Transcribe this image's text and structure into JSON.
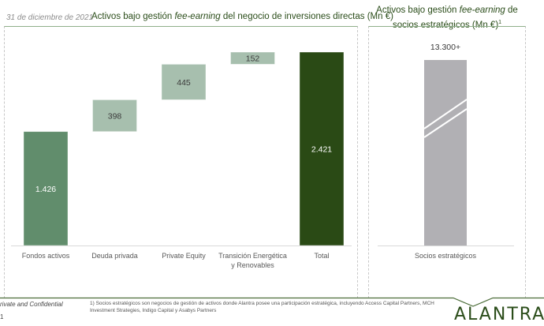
{
  "header": {
    "date": "31 de diciembre de 2021",
    "left_title_pre": "Activos bajo gestión ",
    "left_title_em": "fee-earning",
    "left_title_post": " del negocio de inversiones directas (Mn €)",
    "right_title_pre": "Activos bajo gestión ",
    "right_title_em": "fee-earning",
    "right_title_post": " de socios estratégicos (Mn €)",
    "right_title_sup": "1"
  },
  "chart_data": [
    {
      "type": "bar",
      "subtype": "waterfall",
      "title": "Activos bajo gestión fee-earning del negocio de inversiones directas (Mn €)",
      "categories": [
        "Fondos activos",
        "Deuda privada",
        "Private Equity",
        "Transición Energética y Renovables",
        "Total"
      ],
      "category_lines": [
        [
          "Fondos activos"
        ],
        [
          "Deuda privada"
        ],
        [
          "Private Equity"
        ],
        [
          "Transición Energética",
          "y Renovables"
        ],
        [
          "Total"
        ]
      ],
      "values": [
        1426,
        398,
        445,
        152,
        2421
      ],
      "labels": [
        "1.426",
        "398",
        "445",
        "152",
        "2.421"
      ],
      "bar_kinds": [
        "base",
        "step",
        "step",
        "step",
        "total"
      ],
      "colors": {
        "base": "#618d6c",
        "step": "#a7bfae",
        "total": "#2a4a15"
      },
      "label_colors": {
        "base": "#ffffff",
        "step": "#3a3a3a",
        "total": "#ffffff"
      },
      "xlabel": "",
      "ylabel": "",
      "ylim": [
        0,
        2421
      ],
      "grid": false,
      "legend": "none"
    },
    {
      "type": "bar",
      "title": "Activos bajo gestión fee-earning de socios estratégicos (Mn €)",
      "categories": [
        "Socios estratégicos"
      ],
      "values": [
        13300
      ],
      "labels": [
        "13.300+"
      ],
      "axis_break": true,
      "colors": {
        "bar": "#b1b0b4"
      },
      "grid": false,
      "legend": "none"
    }
  ],
  "footer": {
    "confidential": "rivate and Confidential",
    "page": "1",
    "footnote": "1) Socios estratégicos son negocios de gestión de activos donde Alantra posee una participación estratégica, incluyendo Access Capital Partners, MCH Investment Strategies, Indigo Capital y Asabys Partners",
    "logo": "ALANTRA",
    "brand_color": "#2b4d1a"
  }
}
